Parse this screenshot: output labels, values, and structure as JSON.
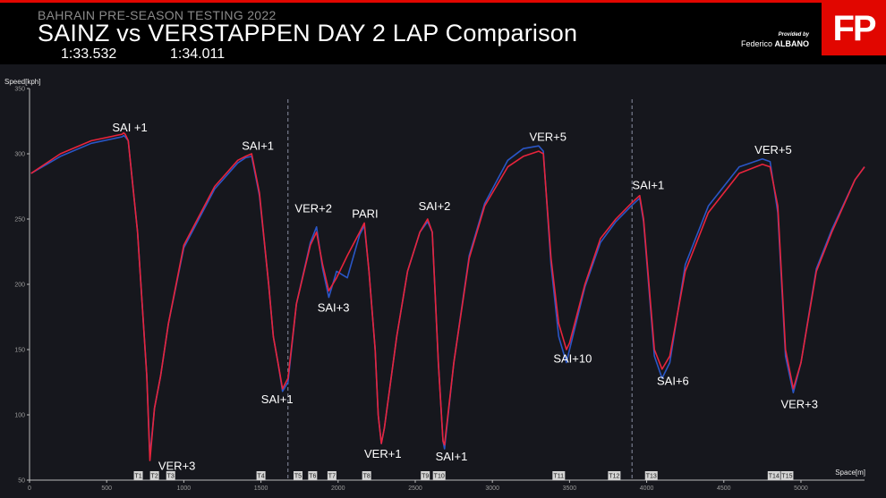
{
  "header": {
    "subtitle": "BAHRAIN PRE-SEASON TESTING 2022",
    "title": "SAINZ vs VERSTAPPEN DAY 2 LAP Comparison",
    "lap_time_1": "1:33.532",
    "lap_time_2": "1:34.011",
    "provided_by": "Provided by",
    "author_first": "Federico",
    "author_last": "ALBANO",
    "logo": "FP"
  },
  "colors": {
    "background": "#16171d",
    "header_bg": "#000000",
    "accent": "#e10600",
    "sainz": "#e8243c",
    "verstappen": "#2a56c6"
  },
  "chart_data": {
    "type": "line",
    "xlabel": "Space[m]",
    "ylabel": "Speed[kph]",
    "xlim": [
      0,
      5412
    ],
    "ylim": [
      50,
      350
    ],
    "x_ticks": [
      0,
      500,
      1000,
      1500,
      2000,
      2500,
      3000,
      3500,
      4000,
      4500,
      5000
    ],
    "y_ticks": [
      50,
      100,
      150,
      200,
      250,
      300,
      350
    ],
    "sector_lines": [
      1675,
      3905
    ],
    "series": [
      {
        "key": "sainz",
        "points": [
          [
            10,
            285
          ],
          [
            200,
            300
          ],
          [
            400,
            310
          ],
          [
            600,
            315
          ],
          [
            610,
            316
          ],
          [
            620,
            315
          ],
          [
            640,
            310
          ],
          [
            700,
            240
          ],
          [
            760,
            130
          ],
          [
            780,
            65
          ],
          [
            810,
            105
          ],
          [
            850,
            130
          ],
          [
            900,
            170
          ],
          [
            1000,
            230
          ],
          [
            1200,
            275
          ],
          [
            1350,
            295
          ],
          [
            1400,
            298
          ],
          [
            1440,
            300
          ],
          [
            1490,
            270
          ],
          [
            1550,
            200
          ],
          [
            1580,
            160
          ],
          [
            1610,
            140
          ],
          [
            1640,
            120
          ],
          [
            1675,
            128
          ],
          [
            1730,
            185
          ],
          [
            1820,
            230
          ],
          [
            1860,
            240
          ],
          [
            1900,
            215
          ],
          [
            1940,
            195
          ],
          [
            1990,
            205
          ],
          [
            2060,
            222
          ],
          [
            2140,
            240
          ],
          [
            2170,
            247
          ],
          [
            2200,
            210
          ],
          [
            2240,
            150
          ],
          [
            2260,
            100
          ],
          [
            2280,
            78
          ],
          [
            2300,
            90
          ],
          [
            2380,
            160
          ],
          [
            2450,
            210
          ],
          [
            2530,
            240
          ],
          [
            2580,
            250
          ],
          [
            2610,
            240
          ],
          [
            2650,
            140
          ],
          [
            2680,
            80
          ],
          [
            2690,
            77
          ],
          [
            2750,
            140
          ],
          [
            2850,
            220
          ],
          [
            2950,
            260
          ],
          [
            3100,
            290
          ],
          [
            3200,
            298
          ],
          [
            3300,
            302
          ],
          [
            3330,
            300
          ],
          [
            3380,
            220
          ],
          [
            3430,
            170
          ],
          [
            3480,
            150
          ],
          [
            3500,
            155
          ],
          [
            3600,
            200
          ],
          [
            3700,
            235
          ],
          [
            3800,
            250
          ],
          [
            3900,
            262
          ],
          [
            3955,
            268
          ],
          [
            3980,
            250
          ],
          [
            4050,
            150
          ],
          [
            4100,
            135
          ],
          [
            4150,
            145
          ],
          [
            4250,
            210
          ],
          [
            4400,
            255
          ],
          [
            4600,
            285
          ],
          [
            4750,
            292
          ],
          [
            4800,
            290
          ],
          [
            4850,
            260
          ],
          [
            4900,
            150
          ],
          [
            4950,
            120
          ],
          [
            5000,
            140
          ],
          [
            5100,
            210
          ],
          [
            5200,
            240
          ],
          [
            5350,
            280
          ],
          [
            5412,
            290
          ]
        ]
      },
      {
        "key": "verstappen",
        "points": [
          [
            10,
            285
          ],
          [
            200,
            298
          ],
          [
            400,
            308
          ],
          [
            600,
            313
          ],
          [
            610,
            314
          ],
          [
            620,
            313
          ],
          [
            640,
            310
          ],
          [
            700,
            240
          ],
          [
            760,
            130
          ],
          [
            780,
            68
          ],
          [
            810,
            105
          ],
          [
            850,
            130
          ],
          [
            900,
            170
          ],
          [
            1000,
            228
          ],
          [
            1200,
            273
          ],
          [
            1350,
            293
          ],
          [
            1400,
            297
          ],
          [
            1440,
            298
          ],
          [
            1490,
            268
          ],
          [
            1550,
            200
          ],
          [
            1580,
            160
          ],
          [
            1610,
            140
          ],
          [
            1640,
            118
          ],
          [
            1675,
            125
          ],
          [
            1730,
            185
          ],
          [
            1820,
            232
          ],
          [
            1860,
            244
          ],
          [
            1900,
            212
          ],
          [
            1940,
            190
          ],
          [
            1990,
            210
          ],
          [
            2060,
            205
          ],
          [
            2140,
            238
          ],
          [
            2170,
            245
          ],
          [
            2200,
            210
          ],
          [
            2240,
            150
          ],
          [
            2260,
            100
          ],
          [
            2280,
            78
          ],
          [
            2300,
            90
          ],
          [
            2380,
            160
          ],
          [
            2450,
            210
          ],
          [
            2530,
            240
          ],
          [
            2580,
            248
          ],
          [
            2610,
            240
          ],
          [
            2650,
            140
          ],
          [
            2680,
            80
          ],
          [
            2690,
            74
          ],
          [
            2750,
            140
          ],
          [
            2850,
            222
          ],
          [
            2950,
            262
          ],
          [
            3100,
            295
          ],
          [
            3200,
            304
          ],
          [
            3300,
            306
          ],
          [
            3330,
            302
          ],
          [
            3380,
            215
          ],
          [
            3430,
            160
          ],
          [
            3480,
            140
          ],
          [
            3500,
            150
          ],
          [
            3600,
            198
          ],
          [
            3700,
            232
          ],
          [
            3800,
            248
          ],
          [
            3900,
            260
          ],
          [
            3955,
            266
          ],
          [
            3980,
            248
          ],
          [
            4050,
            145
          ],
          [
            4100,
            128
          ],
          [
            4150,
            140
          ],
          [
            4250,
            215
          ],
          [
            4400,
            260
          ],
          [
            4600,
            290
          ],
          [
            4750,
            296
          ],
          [
            4800,
            294
          ],
          [
            4850,
            255
          ],
          [
            4900,
            145
          ],
          [
            4950,
            117
          ],
          [
            5000,
            140
          ],
          [
            5100,
            212
          ],
          [
            5200,
            242
          ],
          [
            5350,
            280
          ],
          [
            5412,
            290
          ]
        ]
      }
    ],
    "annotations": [
      {
        "text": "SAI +1",
        "x": 650,
        "y": 317
      },
      {
        "text": "VER+3",
        "x": 955,
        "y": 58
      },
      {
        "text": "SAI+1",
        "x": 1480,
        "y": 303
      },
      {
        "text": "SAI+1",
        "x": 1605,
        "y": 109
      },
      {
        "text": "VER+2",
        "x": 1840,
        "y": 255
      },
      {
        "text": "SAI+3",
        "x": 1970,
        "y": 179
      },
      {
        "text": "PARI",
        "x": 2175,
        "y": 251
      },
      {
        "text": "VER+1",
        "x": 2290,
        "y": 67
      },
      {
        "text": "SAI+2",
        "x": 2625,
        "y": 257
      },
      {
        "text": "SAI+1",
        "x": 2735,
        "y": 65
      },
      {
        "text": "VER+5",
        "x": 3360,
        "y": 310
      },
      {
        "text": "SAI+10",
        "x": 3520,
        "y": 140
      },
      {
        "text": "SAI+1",
        "x": 4010,
        "y": 273
      },
      {
        "text": "SAI+6",
        "x": 4170,
        "y": 123
      },
      {
        "text": "VER+5",
        "x": 4820,
        "y": 300
      },
      {
        "text": "VER+3",
        "x": 4990,
        "y": 105
      }
    ],
    "corners": [
      {
        "label": "T1",
        "x": 705
      },
      {
        "label": "T2",
        "x": 810
      },
      {
        "label": "T3",
        "x": 915
      },
      {
        "label": "T4",
        "x": 1500
      },
      {
        "label": "T5",
        "x": 1740
      },
      {
        "label": "T6",
        "x": 1835
      },
      {
        "label": "T7",
        "x": 1960
      },
      {
        "label": "T8",
        "x": 2185
      },
      {
        "label": "T9",
        "x": 2565
      },
      {
        "label": "T10",
        "x": 2655
      },
      {
        "label": "T11",
        "x": 3430
      },
      {
        "label": "T12",
        "x": 3790
      },
      {
        "label": "T13",
        "x": 4030
      },
      {
        "label": "T14",
        "x": 4825
      },
      {
        "label": "T15",
        "x": 4910
      }
    ]
  }
}
